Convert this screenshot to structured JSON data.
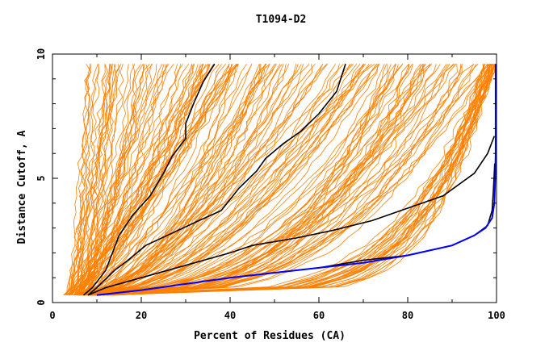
{
  "chart_data": {
    "type": "line",
    "title": "T1094-D2",
    "xlabel": "Percent of Residues (CA)",
    "ylabel": "Distance Cutoff, A",
    "xlim": [
      0,
      100
    ],
    "ylim": [
      0,
      10
    ],
    "x_ticks": [
      0,
      20,
      40,
      60,
      80,
      100
    ],
    "y_ticks": [
      0,
      5,
      10
    ],
    "x_tick_labels": [
      "0",
      "20",
      "40",
      "60",
      "80",
      "100"
    ],
    "y_tick_labels": [
      "0",
      "5",
      "10"
    ],
    "grid": false,
    "legend": "none",
    "colors": {
      "models": "#ff8000",
      "highlighted": "#000000",
      "reference": "#0000ff"
    },
    "series": [
      {
        "role": "highlighted",
        "x": [
          7,
          9,
          12,
          15,
          18,
          22,
          25,
          27,
          30,
          30,
          32,
          34,
          36.5
        ],
        "y": [
          0.3,
          0.6,
          1.3,
          2.7,
          3.5,
          4.3,
          5.2,
          5.9,
          6.6,
          7.2,
          8.1,
          8.9,
          9.6
        ]
      },
      {
        "role": "highlighted",
        "x": [
          8,
          10,
          14,
          17,
          21,
          27,
          33,
          38,
          42,
          46,
          48,
          52,
          56,
          60,
          64,
          66
        ],
        "y": [
          0.3,
          0.6,
          1.3,
          1.7,
          2.3,
          2.8,
          3.3,
          3.7,
          4.6,
          5.3,
          5.8,
          6.4,
          6.9,
          7.6,
          8.5,
          9.6
        ]
      },
      {
        "role": "highlighted",
        "x": [
          8,
          12,
          20,
          30,
          40,
          45,
          55,
          63,
          72,
          80,
          88,
          95,
          98,
          99.5
        ],
        "y": [
          0.3,
          0.6,
          1.0,
          1.5,
          2.0,
          2.3,
          2.6,
          2.9,
          3.3,
          3.8,
          4.3,
          5.2,
          6.0,
          6.7
        ]
      },
      {
        "role": "highlighted",
        "x": [
          10,
          20,
          40,
          60,
          70,
          80,
          90,
          95,
          98,
          99,
          99.3,
          99.6
        ],
        "y": [
          0.3,
          0.5,
          1.0,
          1.4,
          1.7,
          1.9,
          2.3,
          2.7,
          3.1,
          3.7,
          4.5,
          5.6
        ]
      },
      {
        "role": "reference",
        "x": [
          10,
          20,
          40,
          60,
          70,
          80,
          90,
          95,
          97.5,
          99,
          99.5,
          99.7,
          99.8,
          99.8,
          99.8,
          99.8
        ],
        "y": [
          0.3,
          0.5,
          1.0,
          1.4,
          1.6,
          1.9,
          2.3,
          2.7,
          3.0,
          3.4,
          4.0,
          5.0,
          6.0,
          7.0,
          8.5,
          9.6
        ]
      }
    ]
  }
}
